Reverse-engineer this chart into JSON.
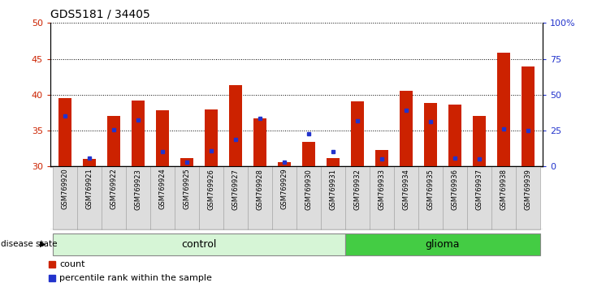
{
  "title": "GDS5181 / 34405",
  "samples": [
    "GSM769920",
    "GSM769921",
    "GSM769922",
    "GSM769923",
    "GSM769924",
    "GSM769925",
    "GSM769926",
    "GSM769927",
    "GSM769928",
    "GSM769929",
    "GSM769930",
    "GSM769931",
    "GSM769932",
    "GSM769933",
    "GSM769934",
    "GSM769935",
    "GSM769936",
    "GSM769937",
    "GSM769938",
    "GSM769939"
  ],
  "red_values": [
    39.5,
    31.0,
    37.0,
    39.2,
    37.8,
    31.2,
    38.0,
    41.3,
    36.7,
    30.6,
    33.4,
    31.2,
    39.1,
    32.3,
    40.5,
    38.9,
    38.6,
    37.0,
    45.8,
    43.9
  ],
  "blue_values": [
    37.0,
    31.2,
    35.1,
    36.5,
    32.1,
    30.6,
    32.2,
    33.8,
    36.7,
    30.6,
    34.6,
    32.1,
    36.4,
    31.1,
    37.8,
    36.2,
    31.2,
    31.0,
    35.2,
    35.0
  ],
  "groups": [
    "control",
    "control",
    "control",
    "control",
    "control",
    "control",
    "control",
    "control",
    "control",
    "control",
    "control",
    "control",
    "glioma",
    "glioma",
    "glioma",
    "glioma",
    "glioma",
    "glioma",
    "glioma",
    "glioma"
  ],
  "control_color_light": "#d6f5d6",
  "control_color_dark": "#90e090",
  "glioma_color_light": "#90e090",
  "glioma_color_dark": "#44cc44",
  "bar_color": "#cc2200",
  "marker_color": "#2233cc",
  "ymin": 30,
  "ymax": 50,
  "y2min": 0,
  "y2max": 100,
  "yticks": [
    30,
    35,
    40,
    45,
    50
  ],
  "y2ticks": [
    0,
    25,
    50,
    75,
    100
  ],
  "y2ticklabels": [
    "0",
    "25",
    "50",
    "75",
    "100%"
  ],
  "bar_width": 0.55,
  "label_count": "count",
  "label_pct": "percentile rank within the sample",
  "tick_label_color_left": "#cc2200",
  "tick_label_color_right": "#2233cc",
  "tick_bg_color": "#dddddd",
  "plot_bg_color": "#ffffff"
}
